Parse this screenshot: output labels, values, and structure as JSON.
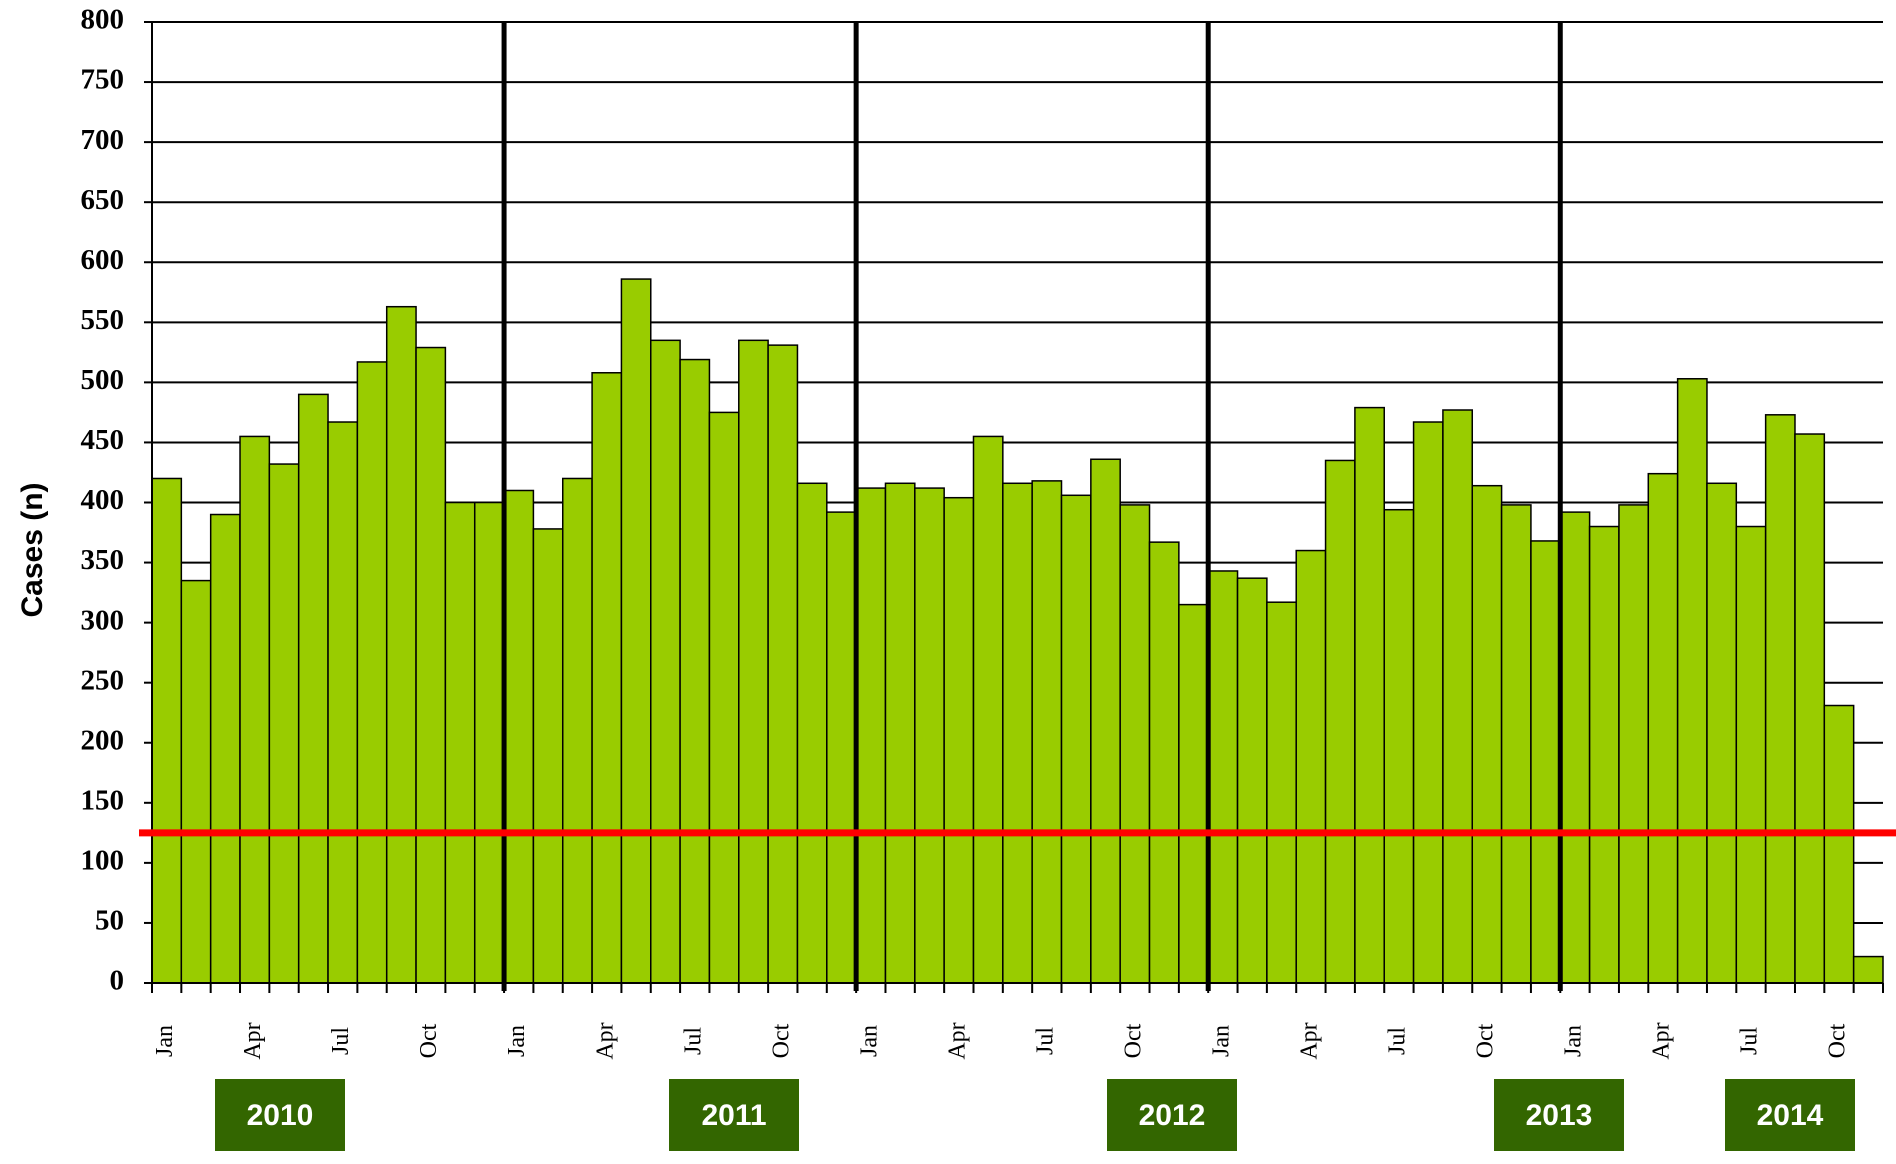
{
  "chart_data": {
    "type": "bar",
    "y_label": "Cases (n)",
    "categories": [
      "Jan",
      null,
      null,
      "Apr",
      null,
      null,
      "Jul",
      null,
      null,
      "Oct",
      null,
      null,
      "Jan",
      null,
      null,
      "Apr",
      null,
      null,
      "Jul",
      null,
      null,
      "Oct",
      null,
      null,
      "Jan",
      null,
      null,
      "Apr",
      null,
      null,
      "Jul",
      null,
      null,
      "Oct",
      null,
      null,
      "Jan",
      null,
      null,
      "Apr",
      null,
      null,
      "Jul",
      null,
      null,
      "Oct",
      null,
      null,
      "Jan",
      null,
      null,
      "Apr",
      null,
      null,
      "Jul",
      null,
      null,
      "Oct",
      null
    ],
    "values": [
      420,
      335,
      390,
      455,
      432,
      490,
      467,
      517,
      563,
      529,
      400,
      400,
      410,
      378,
      420,
      508,
      586,
      535,
      519,
      475,
      535,
      531,
      416,
      392,
      412,
      416,
      412,
      404,
      455,
      416,
      418,
      406,
      436,
      398,
      367,
      315,
      343,
      337,
      317,
      360,
      435,
      479,
      394,
      467,
      477,
      414,
      398,
      368,
      392,
      380,
      398,
      424,
      503,
      416,
      380,
      473,
      457,
      231,
      22
    ],
    "years": [
      "2010",
      "2011",
      "2012",
      "2013",
      "2014"
    ],
    "color": "#99cc00",
    "year_color": "#336600",
    "reference_line": {
      "value": 125,
      "color": "#ff0000"
    },
    "ylim": [
      0,
      800
    ],
    "yticks": [
      0,
      50,
      100,
      150,
      200,
      250,
      300,
      350,
      400,
      450,
      500,
      550,
      600,
      650,
      700,
      750,
      800
    ],
    "grid": true
  }
}
